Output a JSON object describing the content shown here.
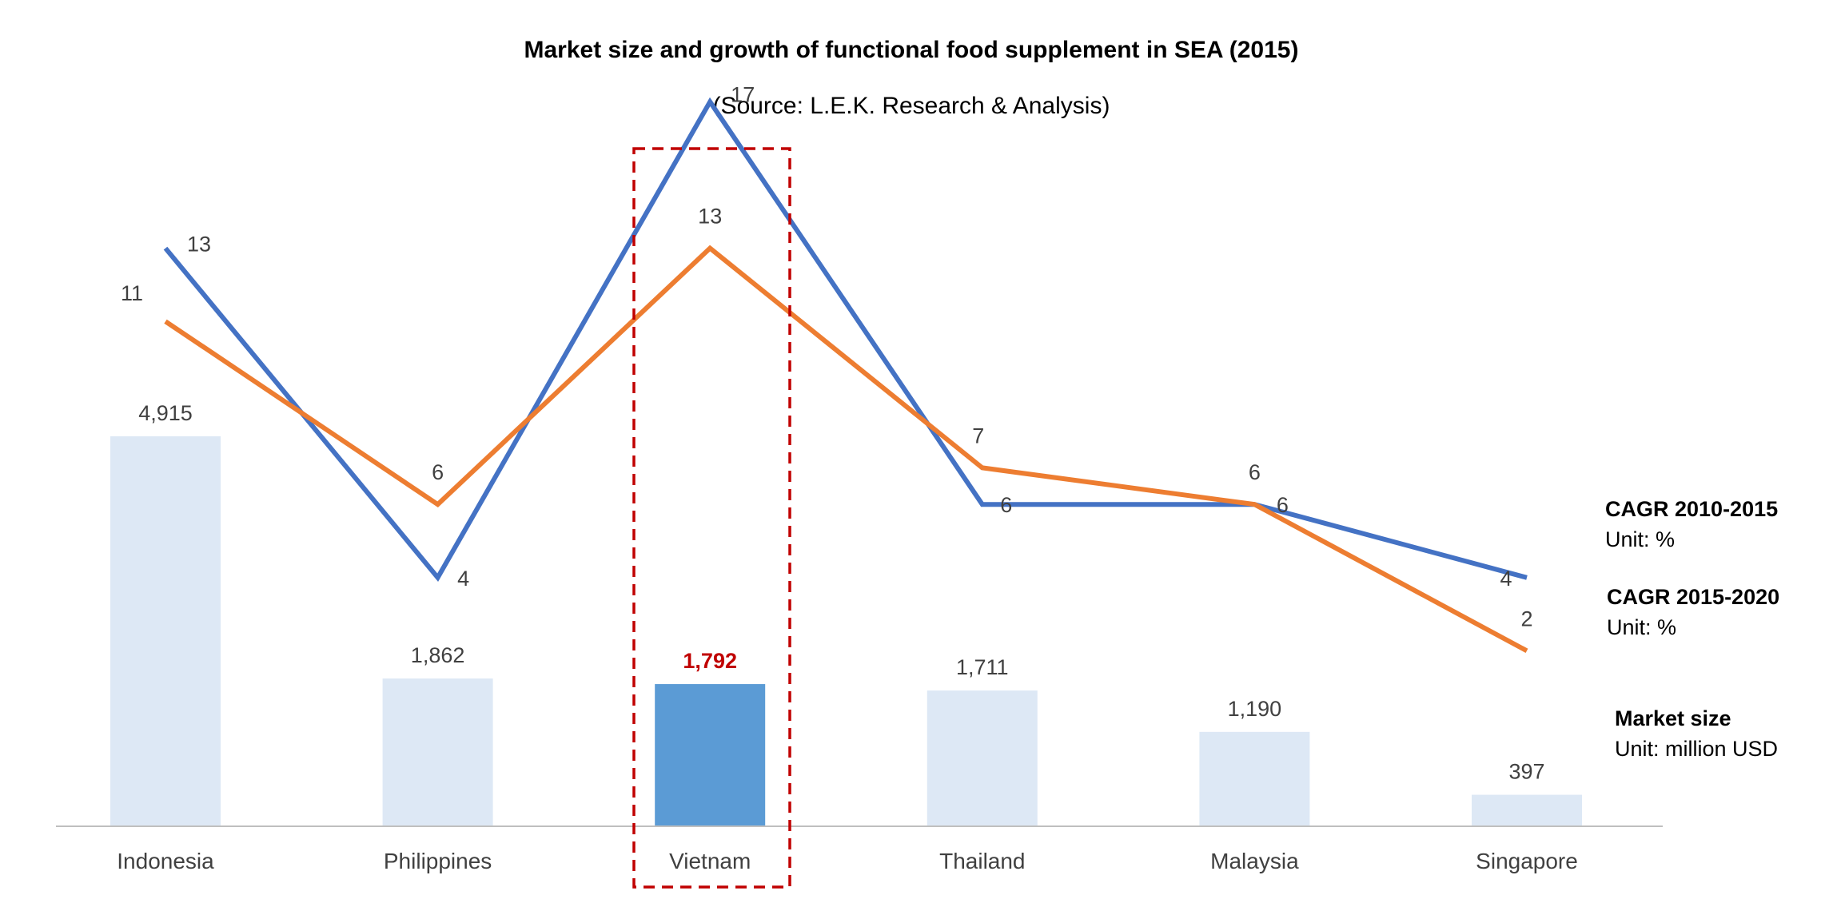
{
  "chart_data": {
    "type": "bar",
    "title": "Market size and growth of functional food supplement in SEA (2015)",
    "subtitle": "(Source: L.E.K. Research & Analysis)",
    "categories": [
      "Indonesia",
      "Philippines",
      "Vietnam",
      "Thailand",
      "Malaysia",
      "Singapore"
    ],
    "highlight_category": "Vietnam",
    "series": [
      {
        "name": "Market size",
        "unit": "Unit: million USD",
        "type": "bar",
        "values": [
          4915,
          1862,
          1792,
          1711,
          1190,
          397
        ],
        "value_labels": [
          "4,915",
          "1,862",
          "1,792",
          "1,711",
          "1,190",
          "397"
        ],
        "color": "#dde8f5",
        "highlight_color": "#5b9bd5",
        "highlight_label_color": "#c00000"
      },
      {
        "name": "CAGR 2010-2015",
        "unit": "Unit: %",
        "type": "line",
        "values": [
          13,
          4,
          17,
          6,
          6,
          4
        ],
        "color": "#4472c4"
      },
      {
        "name": "CAGR 2015-2020",
        "unit": "Unit: %",
        "type": "line",
        "values": [
          11,
          6,
          13,
          7,
          6,
          2
        ],
        "color": "#ed7d31"
      }
    ],
    "grid": false,
    "legend": "right",
    "highlight_box_color": "#c00000",
    "axis_color": "#bfbfbf"
  }
}
